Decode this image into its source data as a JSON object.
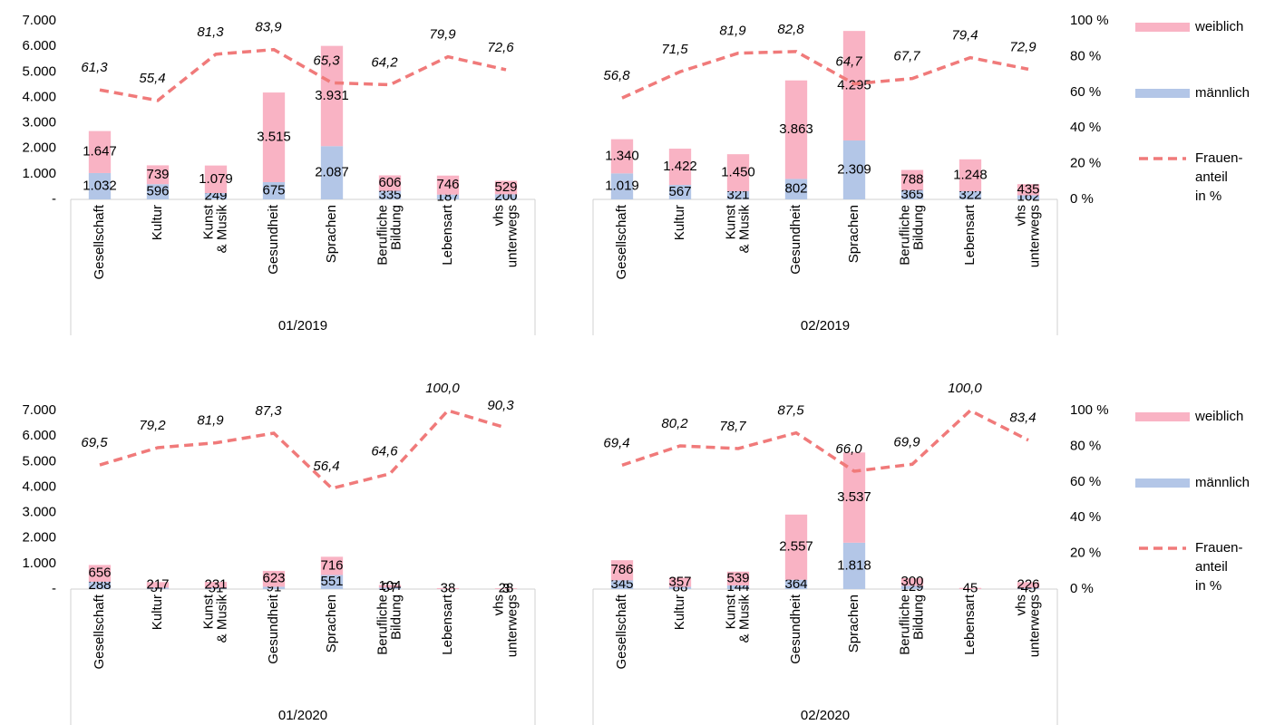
{
  "chart_data": [
    {
      "type": "bar",
      "stacked": true,
      "groups": [
        "01/2019",
        "02/2019"
      ],
      "categories": [
        [
          "Gesellschaft"
        ],
        [
          "Kultur"
        ],
        [
          "Kunst",
          "& Musik"
        ],
        [
          "Gesundheit"
        ],
        [
          "Sprachen"
        ],
        [
          "Berufliche",
          "Bildung"
        ],
        [
          "Lebensart"
        ],
        [
          "vhs",
          "unterwegs"
        ],
        [
          "Gesellschaft"
        ],
        [
          "Kultur"
        ],
        [
          "Kunst",
          "& Musik"
        ],
        [
          "Gesundheit"
        ],
        [
          "Sprachen"
        ],
        [
          "Berufliche",
          "Bildung"
        ],
        [
          "Lebensart"
        ],
        [
          "vhs",
          "unterwegs"
        ]
      ],
      "series": [
        {
          "name": [
            "weiblich"
          ],
          "color": "#f9b3c4",
          "values": [
            1647,
            739,
            1079,
            3515,
            3931,
            606,
            746,
            529,
            1340,
            1422,
            1450,
            3863,
            4295,
            788,
            1248,
            435
          ],
          "value_labels": [
            "1.647",
            "739",
            "1.079",
            "3.515",
            "3.931",
            "606",
            "746",
            "529",
            "1.340",
            "1.422",
            "1.450",
            "3.863",
            "4.295",
            "788",
            "1.248",
            "435"
          ]
        },
        {
          "name": [
            "männlich"
          ],
          "color": "#b3c6e7",
          "values": [
            1032,
            596,
            249,
            675,
            2087,
            335,
            187,
            200,
            1019,
            567,
            321,
            802,
            2309,
            365,
            322,
            162
          ],
          "value_labels": [
            "1.032",
            "596",
            "249",
            "675",
            "2.087",
            "335",
            "187",
            "200",
            "1.019",
            "567",
            "321",
            "802",
            "2.309",
            "365",
            "322",
            "162"
          ]
        },
        {
          "name": [
            "Frauen-",
            "anteil",
            "in %"
          ],
          "type": "line",
          "axis": "y2",
          "color": "#f07a7a",
          "dashed": true,
          "values": [
            61.3,
            55.4,
            81.3,
            83.9,
            65.3,
            64.2,
            79.9,
            72.6,
            56.8,
            71.5,
            81.9,
            82.8,
            64.7,
            67.7,
            79.4,
            72.9
          ],
          "value_labels": [
            "61,3",
            "55,4",
            "81,3",
            "83,9",
            "65,3",
            "64,2",
            "79,9",
            "72,6",
            "56,8",
            "71,5",
            "81,9",
            "82,8",
            "64,7",
            "67,7",
            "79,4",
            "72,9"
          ]
        }
      ],
      "ylim": [
        0,
        7000
      ],
      "yticks": [
        {
          "value": 0,
          "label": "-"
        },
        {
          "value": 1000,
          "label": "1.000"
        },
        {
          "value": 2000,
          "label": "2.000"
        },
        {
          "value": 3000,
          "label": "3.000"
        },
        {
          "value": 4000,
          "label": "4.000"
        },
        {
          "value": 5000,
          "label": "5.000"
        },
        {
          "value": 6000,
          "label": "6.000"
        },
        {
          "value": 7000,
          "label": "7.000"
        }
      ],
      "y2lim": [
        0,
        100
      ],
      "y2ticks": [
        {
          "value": 0,
          "label": "0 %"
        },
        {
          "value": 20,
          "label": "20 %"
        },
        {
          "value": 40,
          "label": "40 %"
        },
        {
          "value": 60,
          "label": "60 %"
        },
        {
          "value": 80,
          "label": "80 %"
        },
        {
          "value": 100,
          "label": "100 %"
        }
      ]
    },
    {
      "type": "bar",
      "stacked": true,
      "groups": [
        "01/2020",
        "02/2020"
      ],
      "categories": [
        [
          "Gesellschaft"
        ],
        [
          "Kultur"
        ],
        [
          "Kunst",
          "& Musik"
        ],
        [
          "Gesundheit"
        ],
        [
          "Sprachen"
        ],
        [
          "Berufliche",
          "Bildung"
        ],
        [
          "Lebensart"
        ],
        [
          "vhs",
          "unterwegs"
        ],
        [
          "Gesellschaft"
        ],
        [
          "Kultur"
        ],
        [
          "Kunst",
          "& Musik"
        ],
        [
          "Gesundheit"
        ],
        [
          "Sprachen"
        ],
        [
          "Berufliche",
          "Bildung"
        ],
        [
          "Lebensart"
        ],
        [
          "vhs",
          "unterwegs"
        ]
      ],
      "series": [
        {
          "name": [
            "weiblich"
          ],
          "color": "#f9b3c4",
          "values": [
            656,
            217,
            231,
            623,
            716,
            104,
            38,
            28,
            786,
            357,
            539,
            2557,
            3537,
            300,
            45,
            226
          ],
          "value_labels": [
            "656",
            "217",
            "231",
            "623",
            "716",
            "104",
            "38",
            "28",
            "786",
            "357",
            "539",
            "2.557",
            "3.537",
            "300",
            "45",
            "226"
          ]
        },
        {
          "name": [
            "männlich"
          ],
          "color": "#b3c6e7",
          "values": [
            288,
            57,
            51,
            91,
            551,
            57,
            0,
            3,
            345,
            88,
            144,
            364,
            1818,
            129,
            0,
            45
          ],
          "value_labels": [
            "288",
            "57",
            "51",
            "91",
            "551",
            "57",
            "-",
            "3",
            "345",
            "88",
            "144",
            "364",
            "1.818",
            "129",
            "-",
            "45"
          ]
        },
        {
          "name": [
            "Frauen-",
            "anteil",
            "in %"
          ],
          "type": "line",
          "axis": "y2",
          "color": "#f07a7a",
          "dashed": true,
          "values": [
            69.5,
            79.2,
            81.9,
            87.3,
            56.4,
            64.6,
            100,
            90.3,
            69.4,
            80.2,
            78.7,
            87.5,
            66,
            69.9,
            100,
            83.4
          ],
          "value_labels": [
            "69,5",
            "79,2",
            "81,9",
            "87,3",
            "56,4",
            "64,6",
            "100,0",
            "90,3",
            "69,4",
            "80,2",
            "78,7",
            "87,5",
            "66,0",
            "69,9",
            "100,0",
            "83,4"
          ]
        }
      ],
      "ylim": [
        0,
        7000
      ],
      "yticks": [
        {
          "value": 0,
          "label": "-"
        },
        {
          "value": 1000,
          "label": "1.000"
        },
        {
          "value": 2000,
          "label": "2.000"
        },
        {
          "value": 3000,
          "label": "3.000"
        },
        {
          "value": 4000,
          "label": "4.000"
        },
        {
          "value": 5000,
          "label": "5.000"
        },
        {
          "value": 6000,
          "label": "6.000"
        },
        {
          "value": 7000,
          "label": "7.000"
        }
      ],
      "y2lim": [
        0,
        100
      ],
      "y2ticks": [
        {
          "value": 0,
          "label": "0 %"
        },
        {
          "value": 20,
          "label": "20 %"
        },
        {
          "value": 40,
          "label": "40 %"
        },
        {
          "value": 60,
          "label": "60 %"
        },
        {
          "value": 80,
          "label": "80 %"
        },
        {
          "value": 100,
          "label": "100 %"
        }
      ]
    }
  ]
}
